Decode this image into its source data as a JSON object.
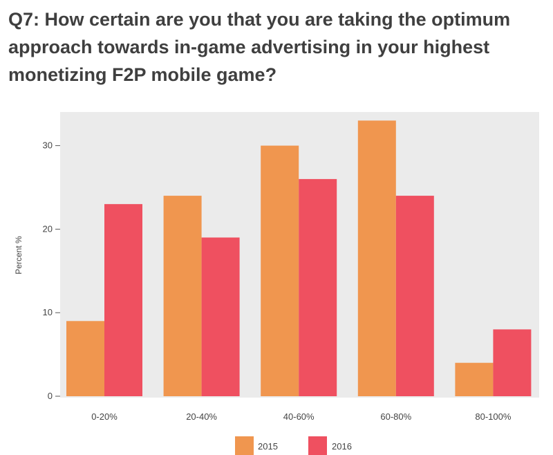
{
  "chart_data": {
    "type": "bar",
    "title": "Q7: How certain are you that you are taking the optimum approach towards in-game advertising in your highest monetizing F2P mobile game?",
    "ylabel": "Percent %",
    "xlabel": "",
    "categories": [
      "0-20%",
      "20-40%",
      "40-60%",
      "60-80%",
      "80-100%"
    ],
    "series": [
      {
        "name": "2015",
        "color": "#f0964f",
        "values": [
          9,
          24,
          30,
          33,
          4
        ]
      },
      {
        "name": "2016",
        "color": "#ef5060",
        "values": [
          23,
          19,
          26,
          24,
          8
        ]
      }
    ],
    "ylim": [
      0,
      34.2
    ],
    "yticks": [
      0,
      10,
      20,
      30
    ],
    "grid": false,
    "background": "#ebebeb",
    "legend": "bottom"
  }
}
